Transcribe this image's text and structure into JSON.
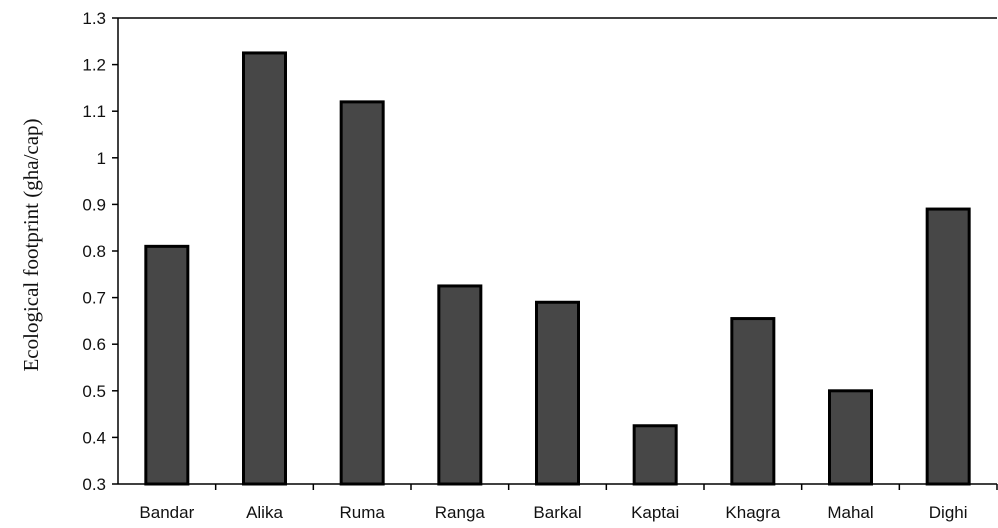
{
  "chart_data": {
    "type": "bar",
    "title": "",
    "xlabel": "",
    "ylabel": "Ecological footprint (gha/cap)",
    "ylim": [
      0.3,
      1.3
    ],
    "yticks": [
      "0.3",
      "0.4",
      "0.5",
      "0.6",
      "0.7",
      "0.8",
      "0.9",
      "1",
      "1.1",
      "1.2",
      "1.3"
    ],
    "categories": [
      "Bandar",
      "Alika",
      "Ruma",
      "Ranga",
      "Barkal",
      "Kaptai",
      "Khagra",
      "Mahal",
      "Dighi"
    ],
    "values": [
      0.81,
      1.225,
      1.12,
      0.725,
      0.69,
      0.425,
      0.655,
      0.5,
      0.89
    ],
    "grid": false,
    "legend": "none",
    "colors": {
      "bar_fill": "#474747",
      "bar_edge": "#000000",
      "axis": "#000000"
    }
  }
}
